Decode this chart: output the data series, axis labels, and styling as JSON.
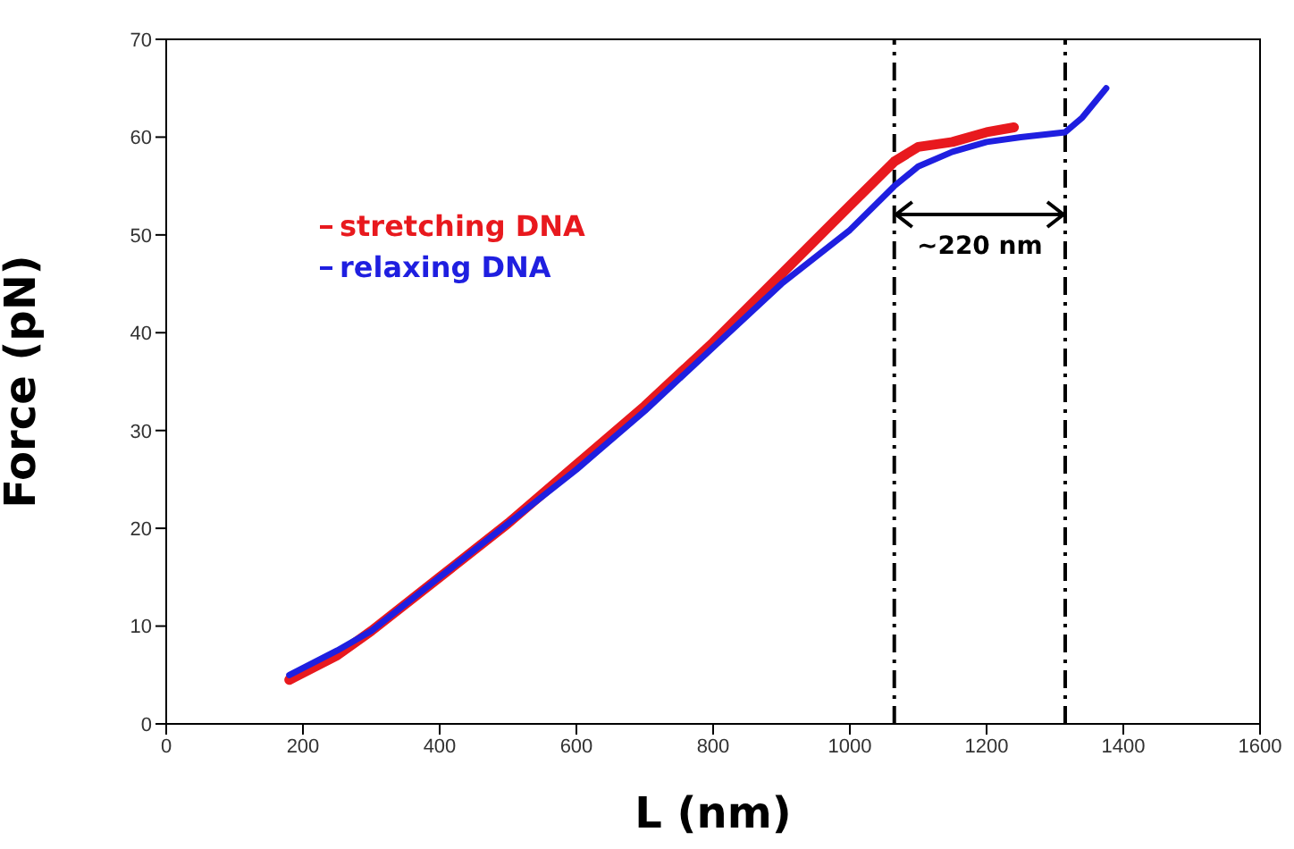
{
  "chart_data": {
    "type": "line",
    "xlabel": "L (nm)",
    "ylabel": "Force (pN)",
    "xlim": [
      0,
      1600
    ],
    "xticks": [
      0,
      200,
      400,
      600,
      800,
      1000,
      1200,
      1400,
      1600
    ],
    "ylim": [
      0,
      70
    ],
    "yticks": [
      0,
      10,
      20,
      30,
      40,
      50,
      60,
      70
    ],
    "grid": false,
    "legend": "top left",
    "marker": "none",
    "line_style": "solid",
    "series": [
      {
        "name": "stretching DNA",
        "color": "#e8191e",
        "x": [
          180,
          250,
          300,
          400,
          500,
          600,
          700,
          800,
          900,
          1000,
          1065,
          1100,
          1150,
          1200,
          1240
        ],
        "values": [
          4.5,
          7,
          9.5,
          15,
          20.5,
          26.5,
          32.5,
          39,
          46,
          53,
          57.5,
          59,
          59.5,
          60.5,
          61
        ]
      },
      {
        "name": "relaxing DNA",
        "color": "#1f1fe0",
        "x": [
          180,
          250,
          300,
          400,
          500,
          600,
          700,
          800,
          900,
          1000,
          1065,
          1100,
          1150,
          1200,
          1250,
          1315,
          1340,
          1375
        ],
        "values": [
          5,
          7.5,
          9.5,
          15,
          20.5,
          26,
          32,
          38.5,
          45,
          50.5,
          55,
          57,
          58.5,
          59.5,
          60,
          60.5,
          62,
          65
        ]
      }
    ],
    "ref_lines": [
      {
        "axis": "x",
        "value": 1065,
        "color": "#000000",
        "line_style": "dashdot"
      },
      {
        "axis": "x",
        "value": 1315,
        "color": "#000000",
        "line_style": "dashdot"
      }
    ],
    "annotations": [
      "~220 nm"
    ]
  }
}
